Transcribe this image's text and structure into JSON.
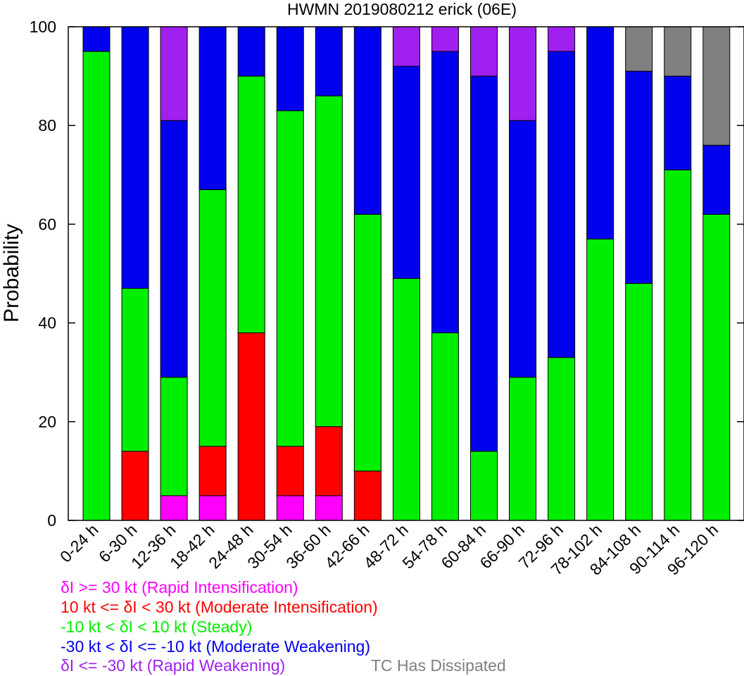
{
  "chart_data": {
    "type": "bar",
    "stacked": true,
    "title": "HWMN 2019080212 erick (06E)",
    "ylabel": "Probability",
    "xlabel": "",
    "ylim": [
      0,
      100
    ],
    "yticks": [
      "0",
      "20",
      "40",
      "60",
      "80",
      "100"
    ],
    "grid": false,
    "categories": [
      "0-24 h",
      "6-30 h",
      "12-36 h",
      "18-42 h",
      "24-48 h",
      "30-54 h",
      "36-60 h",
      "42-66 h",
      "48-72 h",
      "54-78 h",
      "60-84 h",
      "66-90 h",
      "72-96 h",
      "78-102 h",
      "84-108 h",
      "90-114 h",
      "96-120 h"
    ],
    "series": [
      {
        "key": "ri",
        "color": "#ff00ff",
        "values": [
          0,
          0,
          5,
          5,
          0,
          5,
          5,
          0,
          0,
          0,
          0,
          0,
          0,
          0,
          0,
          0,
          0
        ]
      },
      {
        "key": "mi",
        "color": "#ff0000",
        "values": [
          0,
          14,
          0,
          10,
          38,
          10,
          14,
          10,
          0,
          0,
          0,
          0,
          0,
          0,
          0,
          0,
          0
        ]
      },
      {
        "key": "steady",
        "color": "#00ee00",
        "values": [
          95,
          33,
          24,
          52,
          52,
          68,
          67,
          52,
          49,
          38,
          14,
          29,
          33,
          57,
          48,
          71,
          62
        ]
      },
      {
        "key": "mw",
        "color": "#0000ee",
        "values": [
          5,
          53,
          52,
          33,
          10,
          17,
          14,
          38,
          43,
          57,
          76,
          52,
          62,
          43,
          43,
          19,
          14
        ]
      },
      {
        "key": "rw",
        "color": "#a020f0",
        "values": [
          0,
          0,
          19,
          0,
          0,
          0,
          0,
          0,
          8,
          5,
          10,
          19,
          5,
          0,
          0,
          0,
          0
        ]
      },
      {
        "key": "dissipated",
        "color": "#808080",
        "values": [
          0,
          0,
          0,
          0,
          0,
          0,
          0,
          0,
          0,
          0,
          0,
          0,
          0,
          0,
          9,
          10,
          24
        ]
      }
    ]
  },
  "legend": {
    "ri": {
      "label": "δI >= 30 kt (Rapid Intensification)",
      "color": "#ff00ff"
    },
    "mi": {
      "label": "10 kt <= δI < 30 kt (Moderate Intensification)",
      "color": "#ff0000"
    },
    "steady": {
      "label": "-10 kt < δI < 10 kt (Steady)",
      "color": "#00ee00"
    },
    "mw": {
      "label": "-30 kt < δI <= -10 kt (Moderate Weakening)",
      "color": "#0000ee"
    },
    "rw": {
      "label": "δI <= -30 kt (Rapid Weakening)",
      "color": "#a020f0"
    },
    "dissipated": {
      "label": "TC Has Dissipated",
      "color": "#808080"
    }
  }
}
